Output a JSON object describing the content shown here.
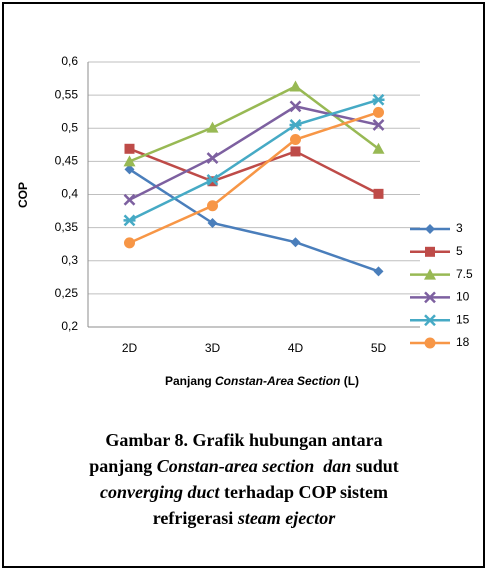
{
  "chart_data": {
    "type": "line",
    "y_label": "COP",
    "x_label": [
      {
        "text": "Panjang "
      },
      {
        "text": "Constan-Area Section",
        "italic": true
      },
      {
        "text": " (L)"
      }
    ],
    "categories": [
      "2D",
      "3D",
      "4D",
      "5D"
    ],
    "series": [
      {
        "name": "3",
        "color": "#4a7ebb",
        "marker": "diamond",
        "values": [
          0.438,
          0.357,
          0.328,
          0.284
        ]
      },
      {
        "name": "5",
        "color": "#be4b48",
        "marker": "square",
        "values": [
          0.469,
          0.42,
          0.465,
          0.401
        ]
      },
      {
        "name": "7.5",
        "color": "#98b954",
        "marker": "triangle",
        "values": [
          0.45,
          0.501,
          0.563,
          0.469
        ]
      },
      {
        "name": "10",
        "color": "#7d60a0",
        "marker": "x",
        "values": [
          0.392,
          0.455,
          0.533,
          0.505
        ]
      },
      {
        "name": "15",
        "color": "#46aac5",
        "marker": "star",
        "values": [
          0.361,
          0.422,
          0.505,
          0.543
        ]
      },
      {
        "name": "18",
        "color": "#f79646",
        "marker": "circle",
        "values": [
          0.327,
          0.383,
          0.483,
          0.524
        ]
      }
    ],
    "ylim": [
      0.2,
      0.6
    ],
    "yticks": [
      {
        "value": 0.2,
        "label": "0,2"
      },
      {
        "value": 0.25,
        "label": "0,25"
      },
      {
        "value": 0.3,
        "label": "0,3"
      },
      {
        "value": 0.35,
        "label": "0,35"
      },
      {
        "value": 0.4,
        "label": "0,4"
      },
      {
        "value": 0.45,
        "label": "0,45"
      },
      {
        "value": 0.5,
        "label": "0,5"
      },
      {
        "value": 0.55,
        "label": "0,55"
      },
      {
        "value": 0.6,
        "label": "0,6"
      }
    ],
    "grid": true,
    "legend": "right"
  },
  "caption": [
    [
      {
        "text": "Gambar 8. Grafik hubungan antara"
      }
    ],
    [
      {
        "text": "panjang "
      },
      {
        "text": "Constan-area section  dan",
        "italic": true
      },
      {
        "text": " sudut"
      }
    ],
    [
      {
        "text": "converging duct",
        "italic": true
      },
      {
        "text": " terhadap COP sistem"
      }
    ],
    [
      {
        "text": "refrigerasi "
      },
      {
        "text": "steam ejector",
        "italic": true
      }
    ]
  ]
}
